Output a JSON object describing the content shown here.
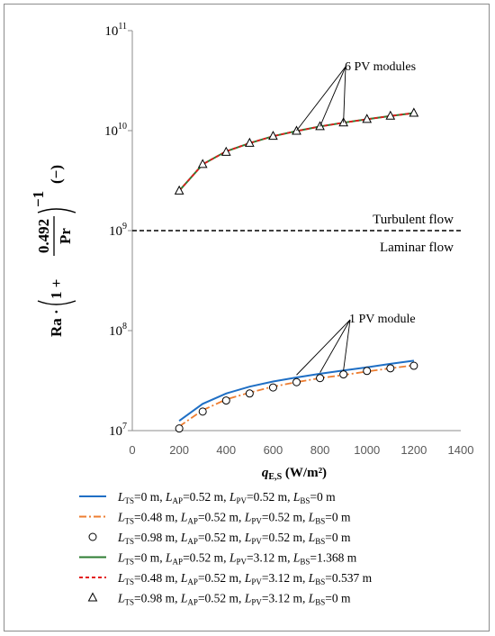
{
  "chart_data": {
    "type": "line",
    "ylabel": {
      "base": "Ra",
      "frac_num": "0.492",
      "frac_den": "Pr",
      "one_plus": "1 +",
      "exponent": "−1",
      "unit": "(−)"
    },
    "xlabel": {
      "main": "q",
      "sub": "E,S",
      "unit": "(W/m²)"
    },
    "xlim": [
      0,
      1400
    ],
    "xticks": [
      0,
      200,
      400,
      600,
      800,
      1000,
      1200,
      1400
    ],
    "ylim": [
      10000000,
      100000000000
    ],
    "yscale": "log",
    "yticks": [
      {
        "value": 10000000,
        "base": "10",
        "exp": "7"
      },
      {
        "value": 100000000,
        "base": "10",
        "exp": "8"
      },
      {
        "value": 1000000000,
        "base": "10",
        "exp": "9"
      },
      {
        "value": 10000000000,
        "base": "10",
        "exp": "10"
      },
      {
        "value": 100000000000,
        "base": "10",
        "exp": "11"
      }
    ],
    "grid": false,
    "reference_line": {
      "y": 1000000000,
      "label_above": "Turbulent flow",
      "label_below": "Laminar flow",
      "color": "#000000"
    },
    "annotations": [
      {
        "text": "6 PV modules",
        "targets": [
          [
            700,
            10000000000
          ],
          [
            800,
            11000000000
          ],
          [
            900,
            12000000000
          ]
        ]
      },
      {
        "text": "1 PV module",
        "targets": [
          [
            700,
            36000000
          ],
          [
            800,
            38000000
          ],
          [
            900,
            40000000
          ]
        ]
      }
    ],
    "x": [
      200,
      300,
      400,
      500,
      600,
      700,
      800,
      900,
      1000,
      1100,
      1200
    ],
    "series": [
      {
        "color": "#1f6fc5",
        "style": "solid",
        "marker": "none",
        "values": [
          12500000,
          18500000,
          23500000,
          27500000,
          31000000,
          34000000,
          37000000,
          40000000,
          43000000,
          46500000,
          50000000
        ]
      },
      {
        "color": "#ed7d31",
        "style": "dashdot",
        "marker": "none",
        "values": [
          11000000,
          16000000,
          20500000,
          24000000,
          27500000,
          30500000,
          33500000,
          36000000,
          39000000,
          42000000,
          45000000
        ]
      },
      {
        "color": "#000000",
        "style": "none",
        "marker": "circle",
        "values": [
          10500000,
          15500000,
          20000000,
          23500000,
          27000000,
          30500000,
          33500000,
          36500000,
          39500000,
          42000000,
          44500000
        ]
      },
      {
        "color": "#2e7d32",
        "style": "solid",
        "marker": "none",
        "values": [
          2500000000,
          4600000000,
          6200000000,
          7500000000,
          8800000000,
          9900000000,
          11000000000,
          12000000000,
          13000000000,
          14000000000,
          15000000000
        ]
      },
      {
        "color": "#e31a1c",
        "style": "dashed",
        "marker": "none",
        "values": [
          2500000000,
          4600000000,
          6200000000,
          7500000000,
          8800000000,
          9900000000,
          11000000000,
          12000000000,
          13000000000,
          14000000000,
          15000000000
        ]
      },
      {
        "color": "#000000",
        "style": "none",
        "marker": "triangle",
        "values": [
          2500000000,
          4600000000,
          6100000000,
          7500000000,
          8800000000,
          9900000000,
          11000000000,
          12000000000,
          13000000000,
          14000000000,
          15000000000
        ]
      }
    ],
    "legend": {
      "placement": "bottom",
      "entries": [
        [
          [
            "L",
            "TS",
            "=0 m, "
          ],
          [
            "L",
            "AP",
            "=0.52 m, "
          ],
          [
            "L",
            "PV",
            "=0.52 m, "
          ],
          [
            "L",
            "BS",
            "=0 m"
          ]
        ],
        [
          [
            "L",
            "TS",
            "=0.48 m, "
          ],
          [
            "L",
            "AP",
            "=0.52 m, "
          ],
          [
            "L",
            "PV",
            "=0.52 m, "
          ],
          [
            "L",
            "BS",
            "=0 m"
          ]
        ],
        [
          [
            "L",
            "TS",
            "=0.98 m, "
          ],
          [
            "L",
            "AP",
            "=0.52 m, "
          ],
          [
            "L",
            "PV",
            "=0.52 m, "
          ],
          [
            "L",
            "BS",
            "=0 m"
          ]
        ],
        [
          [
            "L",
            "TS",
            "=0 m, "
          ],
          [
            "L",
            "AP",
            "=0.52 m, "
          ],
          [
            "L",
            "PV",
            "=3.12 m, "
          ],
          [
            "L",
            "BS",
            "=1.368 m"
          ]
        ],
        [
          [
            "L",
            "TS",
            "=0.48 m, "
          ],
          [
            "L",
            "AP",
            "=0.52 m, "
          ],
          [
            "L",
            "PV",
            "=3.12 m, "
          ],
          [
            "L",
            "BS",
            "=0.537 m"
          ]
        ],
        [
          [
            "L",
            "TS",
            "=0.98 m, "
          ],
          [
            "L",
            "AP",
            "=0.52 m, "
          ],
          [
            "L",
            "PV",
            "=3.12 m, "
          ],
          [
            "L",
            "BS",
            "=0 m"
          ]
        ]
      ]
    }
  }
}
